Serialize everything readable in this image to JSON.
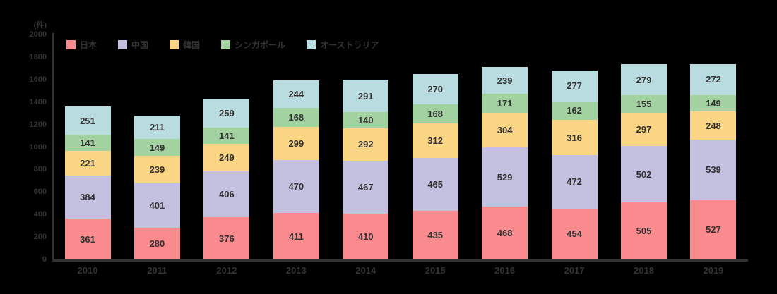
{
  "chart_data": {
    "type": "bar",
    "stacked": true,
    "title": "",
    "unit_label": "(件)",
    "xlabel": "",
    "ylabel": "(件)",
    "categories": [
      "2010",
      "2011",
      "2012",
      "2013",
      "2014",
      "2015",
      "2016",
      "2017",
      "2018",
      "2019"
    ],
    "series": [
      {
        "name": "日本",
        "color": "#f98b8e",
        "values": [
          361,
          280,
          376,
          411,
          410,
          435,
          468,
          454,
          505,
          527
        ]
      },
      {
        "name": "中国",
        "color": "#c4c0e0",
        "values": [
          384,
          401,
          406,
          470,
          467,
          465,
          529,
          472,
          502,
          539
        ]
      },
      {
        "name": "韓国",
        "color": "#fad584",
        "values": [
          221,
          239,
          249,
          299,
          292,
          312,
          304,
          316,
          297,
          248
        ]
      },
      {
        "name": "シンガポール",
        "color": "#a2d2a0",
        "values": [
          141,
          149,
          141,
          168,
          140,
          168,
          171,
          162,
          155,
          149
        ]
      },
      {
        "name": "オーストラリア",
        "color": "#b8dcdf",
        "values": [
          251,
          211,
          259,
          244,
          291,
          270,
          239,
          277,
          279,
          272
        ]
      }
    ],
    "ylim": [
      0,
      2000
    ],
    "ytick_step": 200,
    "yticks": [
      "0",
      "200",
      "400",
      "600",
      "800",
      "1000",
      "1200",
      "1400",
      "1600",
      "1800",
      "2000"
    ],
    "legend_position": "top-left",
    "grid": false
  },
  "colors": {
    "background": "#000000",
    "axis": "#333333",
    "text": "#333333"
  }
}
